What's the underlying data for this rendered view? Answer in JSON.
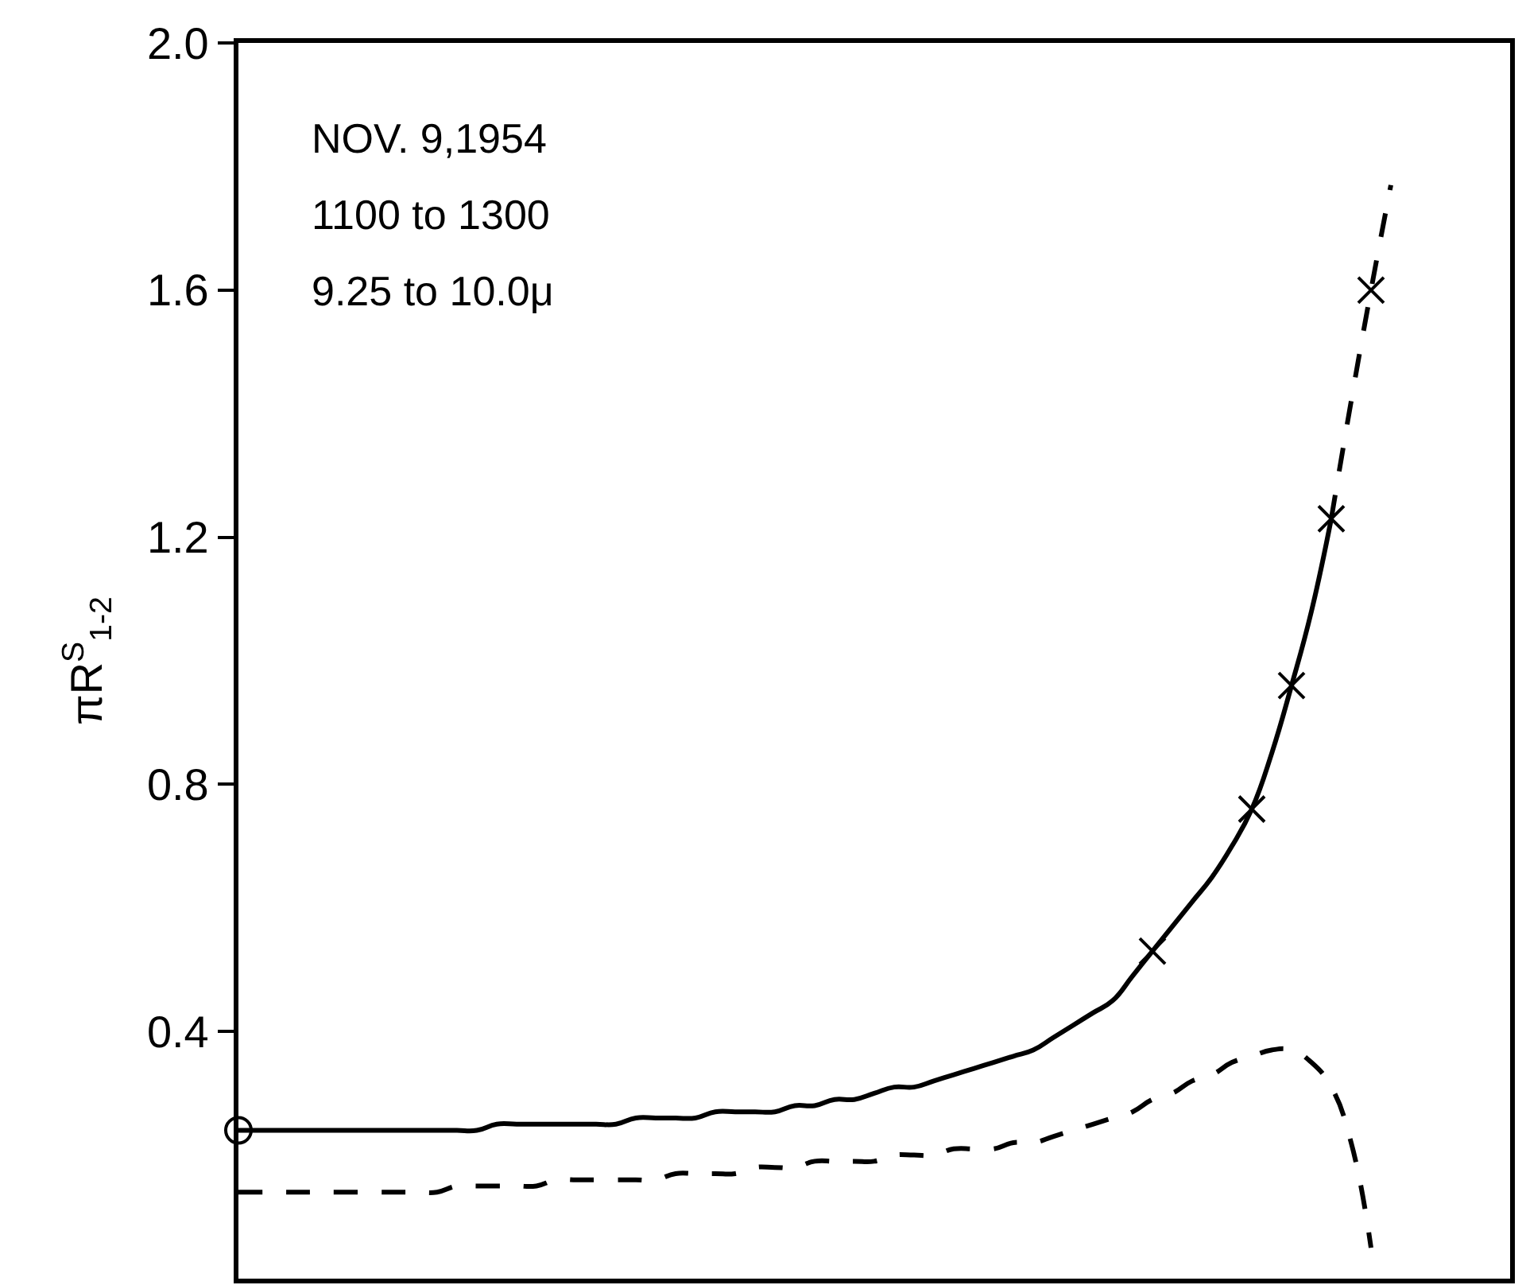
{
  "chart_data": {
    "type": "line",
    "ylabel": "πR$^{S}$$_{1-2}$",
    "annotations": [
      "NOV. 9,1954",
      "1100 to 1300",
      "9.25 to 10.0μ"
    ],
    "categories": [
      null,
      null,
      null,
      null,
      null,
      null,
      null,
      null,
      null,
      null,
      null,
      null,
      null,
      null,
      null,
      null,
      null,
      null,
      null,
      null,
      null,
      null,
      null,
      null,
      null,
      null,
      null,
      null,
      null,
      null,
      null,
      null,
      null,
      null,
      null,
      null,
      null,
      null,
      null,
      null,
      null,
      null,
      null,
      null,
      null,
      null,
      null,
      null,
      null,
      null,
      null,
      null,
      null,
      null,
      null,
      null,
      null,
      null,
      null,
      null,
      null,
      null,
      null,
      null,
      null
    ],
    "series": [
      {
        "color": "#000000",
        "line_style": "solid",
        "marker": "none",
        "values": [
          0.24,
          0.24,
          0.24,
          0.24,
          0.24,
          0.24,
          0.24,
          0.24,
          0.24,
          0.24,
          0.24,
          0.24,
          0.24,
          0.25,
          0.25,
          0.25,
          0.25,
          0.25,
          0.25,
          0.25,
          0.26,
          0.26,
          0.26,
          0.26,
          0.27,
          0.27,
          0.27,
          0.27,
          0.28,
          0.28,
          0.29,
          0.29,
          0.3,
          0.31,
          0.31,
          0.32,
          0.33,
          0.34,
          0.35,
          0.36,
          0.37,
          0.39,
          0.41,
          0.43,
          0.45,
          0.49,
          0.53,
          0.57,
          0.61,
          0.65,
          0.7,
          0.76,
          0.85,
          0.96,
          1.08,
          1.23,
          null,
          null,
          null,
          null,
          null,
          null,
          null,
          null,
          null
        ]
      },
      {
        "color": "#000000",
        "line_style": "dashed",
        "marker": "none",
        "values": [
          null,
          null,
          null,
          null,
          null,
          null,
          null,
          null,
          null,
          null,
          null,
          null,
          null,
          null,
          null,
          null,
          null,
          null,
          null,
          null,
          null,
          null,
          null,
          null,
          null,
          null,
          null,
          null,
          null,
          null,
          null,
          null,
          null,
          null,
          null,
          null,
          null,
          null,
          null,
          null,
          null,
          null,
          null,
          null,
          null,
          null,
          null,
          null,
          null,
          null,
          null,
          null,
          null,
          null,
          null,
          1.23,
          1.42,
          1.6,
          1.77,
          null,
          null,
          null,
          null,
          null,
          null
        ]
      },
      {
        "color": "#000000",
        "line_style": "dashed",
        "marker": "none",
        "values": [
          0.14,
          0.14,
          0.14,
          0.14,
          0.14,
          0.14,
          0.14,
          0.14,
          0.14,
          0.14,
          0.14,
          0.15,
          0.15,
          0.15,
          0.15,
          0.15,
          0.16,
          0.16,
          0.16,
          0.16,
          0.16,
          0.16,
          0.17,
          0.17,
          0.17,
          0.17,
          0.18,
          0.18,
          0.18,
          0.19,
          0.19,
          0.19,
          0.19,
          0.2,
          0.2,
          0.2,
          0.21,
          0.21,
          0.21,
          0.22,
          0.22,
          0.23,
          0.24,
          0.25,
          0.26,
          0.27,
          0.29,
          0.3,
          0.32,
          0.33,
          0.35,
          0.36,
          0.37,
          0.37,
          0.35,
          0.31,
          0.22,
          0.05,
          null,
          null,
          null,
          null,
          null,
          null,
          null
        ]
      },
      {
        "type": "scatter",
        "color": "#000000",
        "marker": "cross",
        "values": [
          null,
          null,
          null,
          null,
          null,
          null,
          null,
          null,
          null,
          null,
          null,
          null,
          null,
          null,
          null,
          null,
          null,
          null,
          null,
          null,
          null,
          null,
          null,
          null,
          null,
          null,
          null,
          null,
          null,
          null,
          null,
          null,
          null,
          null,
          null,
          null,
          null,
          null,
          null,
          null,
          null,
          null,
          null,
          null,
          null,
          null,
          0.53,
          null,
          null,
          null,
          null,
          0.76,
          null,
          0.96,
          null,
          1.23,
          null,
          1.6,
          null,
          null,
          null,
          null,
          null,
          null,
          null
        ]
      },
      {
        "type": "scatter",
        "color": "#000000",
        "marker": "circle",
        "values": [
          0.24,
          null,
          null,
          null,
          null,
          null,
          null,
          null,
          null,
          null,
          null,
          null,
          null,
          null,
          null,
          null,
          null,
          null,
          null,
          null,
          null,
          null,
          null,
          null,
          null,
          null,
          null,
          null,
          null,
          null,
          null,
          null,
          null,
          null,
          null,
          null,
          null,
          null,
          null,
          null,
          null,
          null,
          null,
          null,
          null,
          null,
          null,
          null,
          null,
          null,
          null,
          null,
          null,
          null,
          null,
          null,
          null,
          null,
          null,
          null,
          null,
          null,
          null,
          null,
          null
        ]
      }
    ],
    "ylim": [
      0,
      2
    ],
    "yticks": [
      0.4,
      0.8,
      1.2,
      1.6,
      {
        "value": 2,
        "label": "2.0"
      }
    ],
    "tick_labels": "y",
    "grid": false
  }
}
